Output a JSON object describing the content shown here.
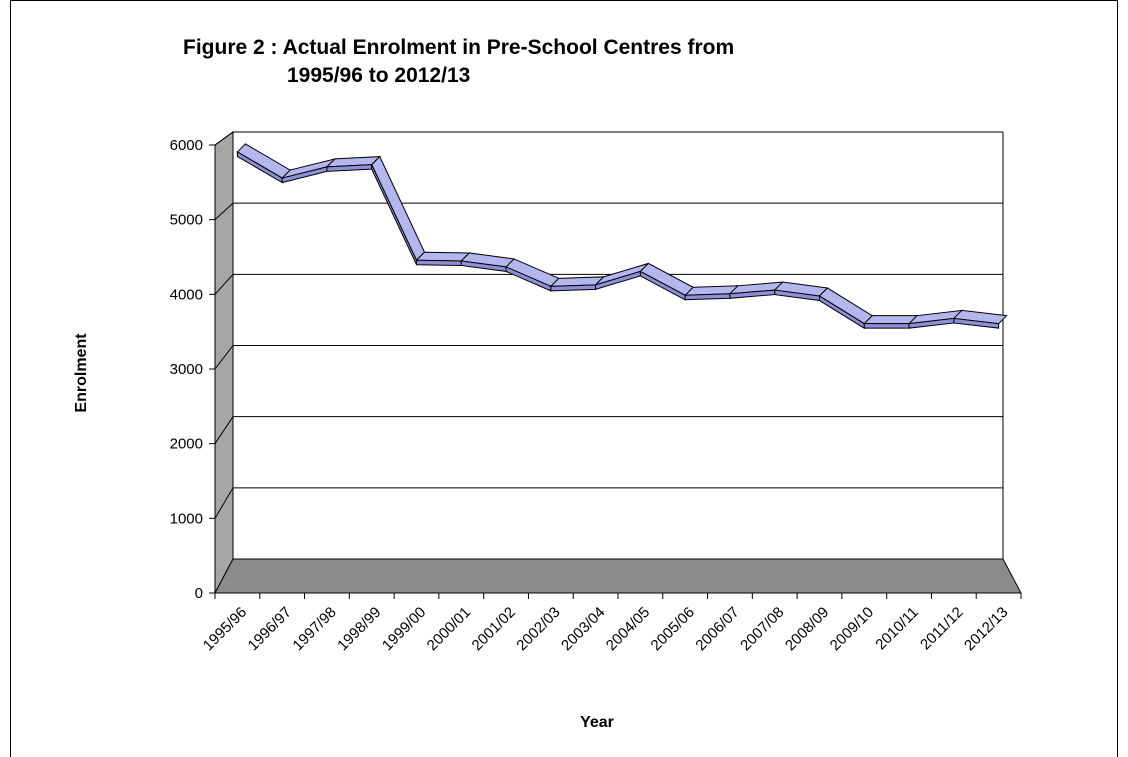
{
  "chart_data": {
    "type": "line",
    "title_lines": [
      "Figure 2 : Actual Enrolment in Pre-School Centres from",
      "1995/96 to 2012/13"
    ],
    "xlabel": "Year",
    "ylabel": "Enrolment",
    "ylim": [
      0,
      6000
    ],
    "yticks": [
      0,
      1000,
      2000,
      3000,
      4000,
      5000,
      6000
    ],
    "categories": [
      "1995/96",
      "1996/97",
      "1997/98",
      "1998/99",
      "1999/00",
      "2000/01",
      "2001/02",
      "2002/03",
      "2003/04",
      "2004/05",
      "2005/06",
      "2006/07",
      "2007/08",
      "2008/09",
      "2009/10",
      "2010/11",
      "2011/12",
      "2012/13"
    ],
    "series": [
      {
        "values": [
          5800,
          5450,
          5600,
          5630,
          4350,
          4340,
          4260,
          4000,
          4020,
          4200,
          3880,
          3900,
          3950,
          3870,
          3500,
          3500,
          3570,
          3500
        ]
      }
    ],
    "grid": true,
    "legend": "none",
    "colors": {
      "line": "#8c8fd9",
      "line_edge": "#000000",
      "floor": "#8c8c8c",
      "wall": "#a6a6a6",
      "grid": "#000000"
    }
  }
}
